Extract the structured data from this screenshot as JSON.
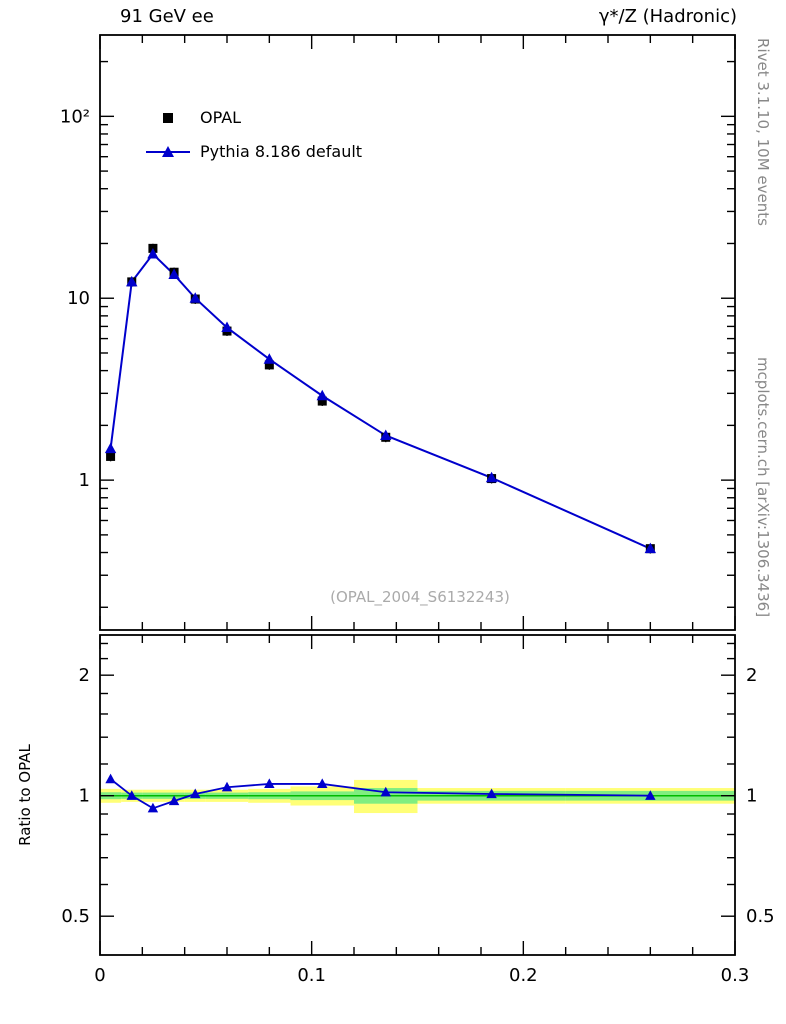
{
  "header": {
    "left_title": "91 GeV ee",
    "right_title": "γ*/Z (Hadronic)"
  },
  "side_text": {
    "rivet": "Rivet 3.1.10,  10M events",
    "mcplots": "mcplots.cern.ch [arXiv:1306.3436]"
  },
  "watermark": "(OPAL_2004_S6132243)",
  "ratio_axis_label": "Ratio to OPAL",
  "legend": [
    {
      "label": "OPAL",
      "marker": "black-square"
    },
    {
      "label": "Pythia 8.186 default",
      "marker": "blue-line-triangle"
    }
  ],
  "colors": {
    "pythia": "#0000cc",
    "data": "#000000",
    "band_yellow": "#ffff77",
    "band_green": "#80ee80",
    "unity_line": "#00bb00",
    "watermark_text": "#aaaaaa",
    "side_text": "#888888"
  },
  "chart_data": {
    "type": "line",
    "x": [
      0.005,
      0.015,
      0.025,
      0.035,
      0.045,
      0.06,
      0.08,
      0.105,
      0.135,
      0.185,
      0.26
    ],
    "bin_edges": [
      0,
      0.01,
      0.02,
      0.03,
      0.04,
      0.05,
      0.07,
      0.09,
      0.12,
      0.15,
      0.22,
      0.3
    ],
    "series": [
      {
        "name": "OPAL",
        "marker": "square",
        "color": "#000000",
        "values": [
          1.35,
          12.3,
          18.8,
          13.9,
          9.9,
          6.6,
          4.3,
          2.72,
          1.72,
          1.02,
          0.42
        ]
      },
      {
        "name": "Pythia 8.186 default",
        "marker": "triangle-up",
        "color": "#0000cc",
        "values": [
          1.49,
          12.3,
          17.5,
          13.5,
          10.0,
          6.9,
          4.62,
          2.91,
          1.76,
          1.03,
          0.42
        ]
      }
    ],
    "ratio": {
      "name": "Pythia 8.186 default / OPAL",
      "values": [
        1.1,
        1.0,
        0.93,
        0.97,
        1.01,
        1.05,
        1.07,
        1.07,
        1.02,
        1.01,
        1.0
      ]
    },
    "bands": [
      {
        "xlo": 0.0,
        "xhi": 0.01,
        "yellow": 0.04,
        "green": 0.02
      },
      {
        "xlo": 0.01,
        "xhi": 0.02,
        "yellow": 0.035,
        "green": 0.018
      },
      {
        "xlo": 0.02,
        "xhi": 0.03,
        "yellow": 0.035,
        "green": 0.018
      },
      {
        "xlo": 0.03,
        "xhi": 0.04,
        "yellow": 0.035,
        "green": 0.018
      },
      {
        "xlo": 0.04,
        "xhi": 0.05,
        "yellow": 0.035,
        "green": 0.018
      },
      {
        "xlo": 0.05,
        "xhi": 0.07,
        "yellow": 0.035,
        "green": 0.018
      },
      {
        "xlo": 0.07,
        "xhi": 0.09,
        "yellow": 0.04,
        "green": 0.02
      },
      {
        "xlo": 0.09,
        "xhi": 0.12,
        "yellow": 0.055,
        "green": 0.025
      },
      {
        "xlo": 0.12,
        "xhi": 0.15,
        "yellow": 0.095,
        "green": 0.045
      },
      {
        "xlo": 0.15,
        "xhi": 0.22,
        "yellow": 0.045,
        "green": 0.028
      },
      {
        "xlo": 0.22,
        "xhi": 0.3,
        "yellow": 0.045,
        "green": 0.028
      }
    ],
    "axes": {
      "x": {
        "min": 0,
        "max": 0.3,
        "major": [
          0,
          0.1,
          0.2,
          0.3
        ],
        "labels": [
          "0",
          "0.1",
          "0.2",
          "0.3"
        ],
        "minor_step": 0.02
      },
      "y_main": {
        "scale": "log",
        "min": 0.15,
        "max": 280,
        "major": [
          1,
          10,
          100
        ],
        "labels": [
          "1",
          "10",
          "10²"
        ]
      },
      "y_ratio": {
        "scale": "log",
        "min": 0.4,
        "max": 2.52,
        "major": [
          0.5,
          1,
          2
        ],
        "labels": [
          "0.5",
          "1",
          "2"
        ],
        "minor": [
          0.6,
          0.7,
          0.8,
          0.9,
          1.2,
          1.4,
          1.6,
          1.8,
          2.2,
          2.4
        ]
      }
    }
  }
}
